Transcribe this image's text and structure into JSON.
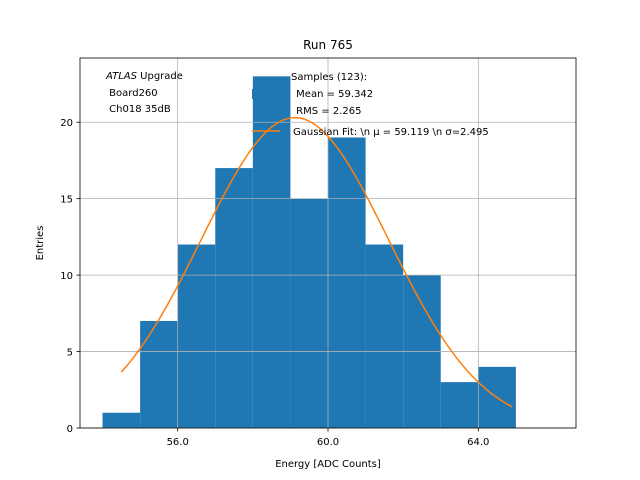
{
  "chart_data": {
    "type": "bar",
    "title": "Run 765",
    "xlabel": "Energy [ADC Counts]",
    "ylabel": "Entries",
    "xlim": [
      53.4,
      66.6
    ],
    "ylim": [
      0,
      24.2
    ],
    "grid": true,
    "x_ticks": [
      {
        "value": 56,
        "label": "56.0"
      },
      {
        "value": 60,
        "label": "60.0"
      },
      {
        "value": 64,
        "label": "64.0"
      }
    ],
    "y_ticks": [
      {
        "value": 0,
        "label": "0"
      },
      {
        "value": 5,
        "label": "5"
      },
      {
        "value": 10,
        "label": "10"
      },
      {
        "value": 15,
        "label": "15"
      },
      {
        "value": 20,
        "label": "20"
      }
    ],
    "bins": [
      {
        "x0": 54,
        "x1": 55,
        "count": 1
      },
      {
        "x0": 55,
        "x1": 56,
        "count": 7
      },
      {
        "x0": 56,
        "x1": 57,
        "count": 12
      },
      {
        "x0": 57,
        "x1": 58,
        "count": 17
      },
      {
        "x0": 58,
        "x1": 59,
        "count": 23
      },
      {
        "x0": 59,
        "x1": 60,
        "count": 15
      },
      {
        "x0": 60,
        "x1": 61,
        "count": 19
      },
      {
        "x0": 61,
        "x1": 62,
        "count": 12
      },
      {
        "x0": 62,
        "x1": 63,
        "count": 10
      },
      {
        "x0": 63,
        "x1": 64,
        "count": 3
      },
      {
        "x0": 64,
        "x1": 65,
        "count": 4
      }
    ],
    "series": [
      {
        "name": "Samples (123):\n Mean = 59.342\n RMS = 2.265",
        "kind": "histogram"
      },
      {
        "name": "Gaussian Fit: \\n μ = 59.119 \\n σ=2.495",
        "kind": "line",
        "mu": 59.119,
        "sigma": 2.495,
        "x_range": [
          54.5,
          64.9
        ],
        "peak": 20.3
      }
    ],
    "legend_placement": "top-right",
    "annotations": {
      "atlas_italic": "ATLAS",
      "atlas_suffix": " Upgrade",
      "board": " Board260",
      "channel": " Ch018 35dB"
    },
    "colors": {
      "bars": "#1f77b4",
      "fit": "#ff7f0e",
      "grid": "#b0b0b0",
      "axes": "#000000"
    }
  }
}
